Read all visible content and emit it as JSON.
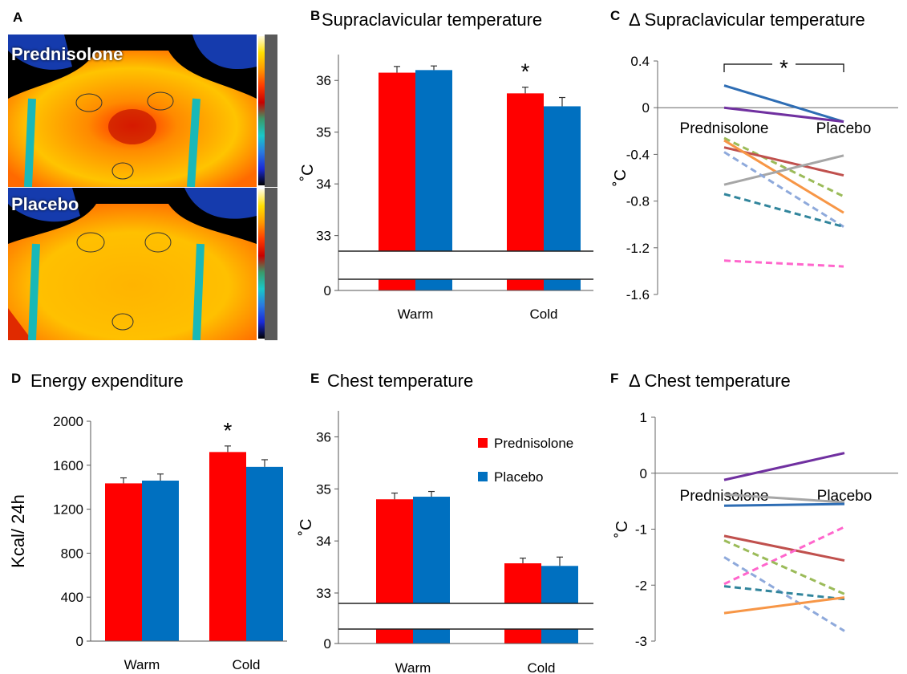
{
  "colors": {
    "prednisolone": "#ff0000",
    "placebo": "#0070c0"
  },
  "panel_a": {
    "letter": "A",
    "image_labels": [
      "Prednisolone",
      "Placebo"
    ]
  },
  "chart_data": [
    {
      "id": "B",
      "type": "bar",
      "title": "Supraclavicular temperature",
      "ylabel": "˚C",
      "xlabel": "",
      "categories": [
        "Warm",
        "Cold"
      ],
      "series": [
        {
          "name": "Prednisolone",
          "values": [
            36.15,
            35.75
          ],
          "errors": [
            0.12,
            0.12
          ]
        },
        {
          "name": "Placebo",
          "values": [
            36.2,
            35.5
          ],
          "errors": [
            0.08,
            0.17
          ]
        }
      ],
      "yticks": [
        33,
        34,
        35,
        36
      ],
      "ylim": [
        32.7,
        36.5
      ],
      "axis_break": true,
      "zero_tick": 0,
      "annotations": [
        {
          "text": "*",
          "category": "Cold"
        }
      ]
    },
    {
      "id": "C",
      "type": "line",
      "title": "Δ Supraclavicular temperature",
      "ylabel": "˚C",
      "xlabel": "",
      "categories": [
        "Prednisolone",
        "Placebo"
      ],
      "yticks": [
        0.4,
        0,
        -0.4,
        -0.8,
        -1.2,
        -1.6
      ],
      "ylim": [
        -1.6,
        0.4
      ],
      "annotations": [
        {
          "text": "*"
        }
      ],
      "series": [
        {
          "color": "#2e6db4",
          "dashed": false,
          "values": [
            0.19,
            -0.12
          ]
        },
        {
          "color": "#7030a0",
          "dashed": false,
          "values": [
            0.0,
            -0.12
          ]
        },
        {
          "color": "#9bbb59",
          "dashed": true,
          "values": [
            -0.26,
            -0.76
          ]
        },
        {
          "color": "#c0504d",
          "dashed": false,
          "values": [
            -0.34,
            -0.58
          ]
        },
        {
          "color": "#f79646",
          "dashed": false,
          "values": [
            -0.28,
            -0.9
          ]
        },
        {
          "color": "#a6a6a6",
          "dashed": false,
          "values": [
            -0.66,
            -0.41
          ]
        },
        {
          "color": "#8ea9db",
          "dashed": true,
          "values": [
            -0.38,
            -1.02
          ]
        },
        {
          "color": "#31859c",
          "dashed": true,
          "values": [
            -0.74,
            -1.02
          ]
        },
        {
          "color": "#ff66cc",
          "dashed": true,
          "values": [
            -1.31,
            -1.36
          ]
        }
      ]
    },
    {
      "id": "D",
      "type": "bar",
      "title": "Energy expenditure",
      "ylabel": "Kcal/ 24h",
      "xlabel": "",
      "categories": [
        "Warm",
        "Cold"
      ],
      "series": [
        {
          "name": "Prednisolone",
          "values": [
            1435,
            1720
          ],
          "errors": [
            50,
            55
          ]
        },
        {
          "name": "Placebo",
          "values": [
            1460,
            1585
          ],
          "errors": [
            60,
            65
          ]
        }
      ],
      "yticks": [
        0,
        400,
        800,
        1200,
        1600,
        2000
      ],
      "ylim": [
        0,
        2000
      ],
      "annotations": [
        {
          "text": "*",
          "category": "Cold"
        }
      ]
    },
    {
      "id": "E",
      "type": "bar",
      "title": "Chest temperature",
      "ylabel": "˚C",
      "xlabel": "",
      "categories": [
        "Warm",
        "Cold"
      ],
      "series": [
        {
          "name": "Prednisolone",
          "values": [
            34.8,
            33.57
          ],
          "errors": [
            0.12,
            0.1
          ]
        },
        {
          "name": "Placebo",
          "values": [
            34.85,
            33.52
          ],
          "errors": [
            0.1,
            0.17
          ]
        }
      ],
      "yticks": [
        33,
        34,
        35,
        36
      ],
      "ylim": [
        32.8,
        36.5
      ],
      "axis_break": true,
      "zero_tick": 0,
      "legend": "top-right"
    },
    {
      "id": "F",
      "type": "line",
      "title": "Δ Chest temperature",
      "ylabel": "˚C",
      "xlabel": "",
      "categories": [
        "Prednisolone",
        "Placebo"
      ],
      "yticks": [
        1,
        0,
        -1,
        -2,
        -3
      ],
      "ylim": [
        -3,
        1
      ],
      "series": [
        {
          "color": "#7030a0",
          "dashed": false,
          "values": [
            -0.12,
            0.36
          ]
        },
        {
          "color": "#a6a6a6",
          "dashed": false,
          "values": [
            -0.38,
            -0.52
          ]
        },
        {
          "color": "#2e6db4",
          "dashed": false,
          "values": [
            -0.58,
            -0.55
          ]
        },
        {
          "color": "#c0504d",
          "dashed": false,
          "values": [
            -1.12,
            -1.56
          ]
        },
        {
          "color": "#ff66cc",
          "dashed": true,
          "values": [
            -1.98,
            -0.96
          ]
        },
        {
          "color": "#9bbb59",
          "dashed": true,
          "values": [
            -1.2,
            -2.16
          ]
        },
        {
          "color": "#8ea9db",
          "dashed": true,
          "values": [
            -1.5,
            -2.82
          ]
        },
        {
          "color": "#31859c",
          "dashed": true,
          "values": [
            -2.02,
            -2.25
          ]
        },
        {
          "color": "#f79646",
          "dashed": false,
          "values": [
            -2.5,
            -2.22
          ]
        }
      ]
    }
  ]
}
